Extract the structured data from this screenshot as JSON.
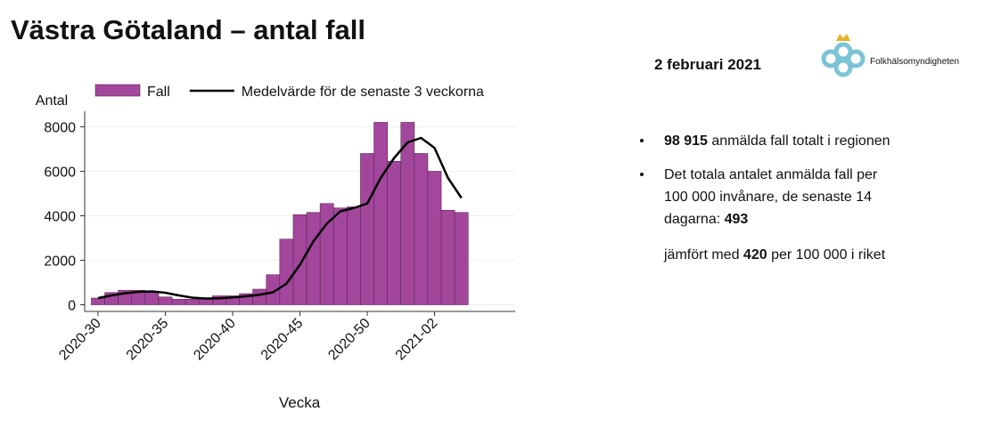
{
  "chart_data": {
    "type": "bar",
    "title": "Västra Götaland – antal fall",
    "y_label": "Antal",
    "x_label": "Vecka",
    "categories": [
      "2020-30",
      null,
      null,
      null,
      null,
      "2020-35",
      null,
      null,
      null,
      null,
      "2020-40",
      null,
      null,
      null,
      null,
      "2020-45",
      null,
      null,
      null,
      null,
      "2020-50",
      null,
      null,
      null,
      null,
      "2021-02",
      null,
      null
    ],
    "series": [
      {
        "name": "Fall",
        "type": "bar",
        "color": "#a3479c",
        "values": [
          300,
          550,
          650,
          650,
          550,
          350,
          250,
          250,
          300,
          400,
          400,
          500,
          700,
          1350,
          2950,
          4050,
          4150,
          4550,
          4350,
          4400,
          6800,
          8200,
          6450,
          8200,
          6800,
          6000,
          4250,
          4150
        ]
      },
      {
        "name": "Medelvärde för de senaste 3 veckorna",
        "type": "line",
        "color": "#000000",
        "values": [
          300,
          420,
          520,
          580,
          600,
          540,
          420,
          320,
          280,
          290,
          330,
          380,
          450,
          560,
          950,
          1800,
          2850,
          3650,
          4200,
          4350,
          4550,
          5700,
          6600,
          7300,
          7500,
          7050,
          5700,
          4800
        ]
      }
    ],
    "ylim": [
      -300,
      8700
    ],
    "yticks": [
      0,
      2000,
      4000,
      6000,
      8000
    ],
    "grid": true,
    "legend": "top"
  },
  "slide": {
    "date": "2 februari 2021",
    "logo": "Folkhälsomyndigheten",
    "bullets": [
      {
        "lines": [
          [
            {
              "text": "98 915",
              "bold": true
            },
            {
              "text": " anmälda fall totalt i regionen"
            }
          ]
        ]
      },
      {
        "lines": [
          [
            {
              "text": "Det totala antalet anmälda fall per"
            }
          ],
          [
            {
              "text": "100 000 invånare, de senaste 14"
            }
          ],
          [
            {
              "text": "dagarna: "
            },
            {
              "text": "493",
              "bold": true
            }
          ]
        ]
      }
    ],
    "note": {
      "lines": [
        [
          {
            "text": "jämfört med "
          },
          {
            "text": "420",
            "bold": true
          },
          {
            "text": " per 100 000 i riket"
          }
        ]
      ]
    }
  }
}
